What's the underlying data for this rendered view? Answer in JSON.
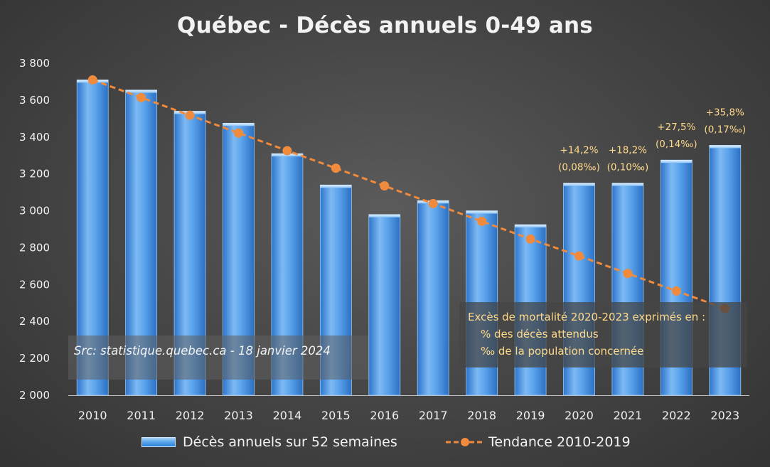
{
  "chart_data": {
    "type": "bar",
    "title": "Québec - Décès annuels 0-49 ans",
    "categories": [
      "2010",
      "2011",
      "2012",
      "2013",
      "2014",
      "2015",
      "2016",
      "2017",
      "2018",
      "2019",
      "2020",
      "2021",
      "2022",
      "2023"
    ],
    "series": [
      {
        "name": "Décès annuels sur 52 semaines",
        "type": "bar",
        "values": [
          3710,
          3655,
          3540,
          3475,
          3310,
          3140,
          2980,
          3055,
          3000,
          2925,
          3150,
          3150,
          3275,
          3355
        ]
      },
      {
        "name": "Tendance 2010-2019",
        "type": "line",
        "values": [
          3710,
          3614,
          3518,
          3422,
          3326,
          3231,
          3135,
          3039,
          2943,
          2847,
          2755,
          2660,
          2565,
          2470
        ]
      }
    ],
    "ylim": [
      2000,
      3800
    ],
    "yticks": [
      2000,
      2200,
      2400,
      2600,
      2800,
      3000,
      3200,
      3400,
      3600,
      3800
    ],
    "ytick_labels": [
      "2 000",
      "2 200",
      "2 400",
      "2 600",
      "2 800",
      "3 000",
      "3 200",
      "3 400",
      "3 600",
      "3 800"
    ],
    "xlabel": "",
    "ylabel": "",
    "grid": false,
    "legend_position": "bottom",
    "annotations": [
      {
        "category": "2020",
        "line1": "+14,2%",
        "line2": "(0,08‰)"
      },
      {
        "category": "2021",
        "line1": "+18,2%",
        "line2": "(0,10‰)"
      },
      {
        "category": "2022",
        "line1": "+27,5%",
        "line2": "(0,14‰)"
      },
      {
        "category": "2023",
        "line1": "+35,8%",
        "line2": "(0,17‰)"
      }
    ],
    "source_note": "Src: statistique.quebec.ca - 18 janvier 2024",
    "explanation_note": {
      "line1": "Excès de mortalité 2020-2023 exprimés en :",
      "line2": "% des décès attendus",
      "line3": "‰ de la population concernée"
    },
    "colors": {
      "bar": "#4a95e6",
      "trend": "#f08a3c",
      "annotation": "#ffd98a",
      "background": "#444444"
    }
  }
}
